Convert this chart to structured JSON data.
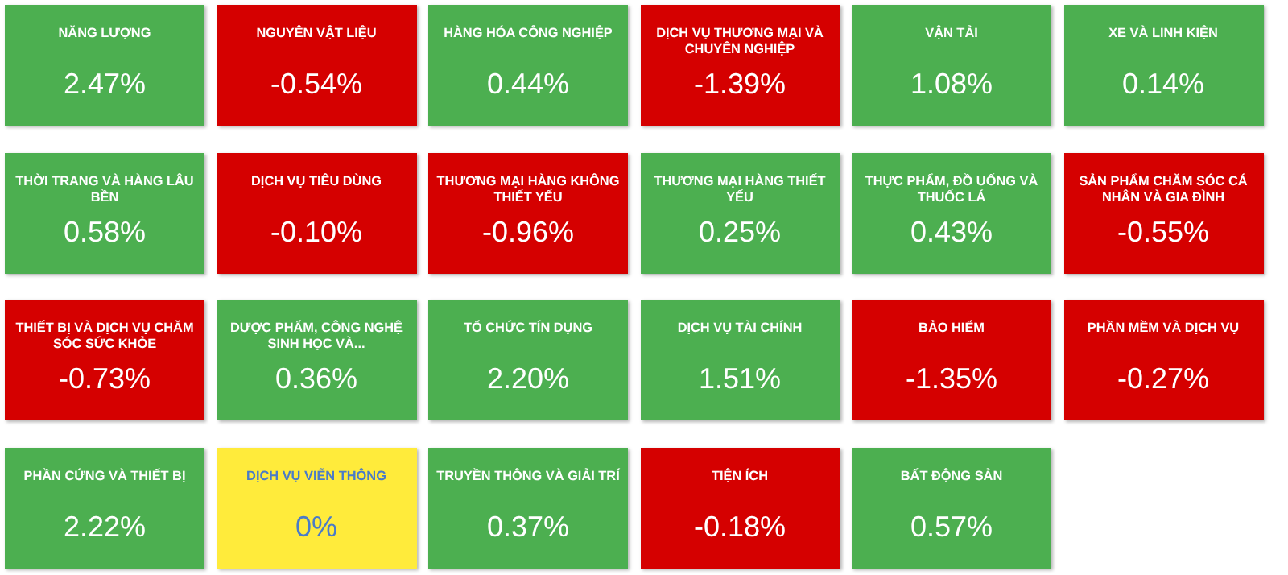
{
  "chart_data": {
    "type": "other",
    "categories": [
      "NĂNG LƯỢNG",
      "NGUYÊN VẬT LIỆU",
      "HÀNG HÓA CÔNG NGHIỆP",
      "DỊCH VỤ THƯƠNG MẠI VÀ CHUYÊN NGHIỆP",
      "VẬN TẢI",
      "XE VÀ LINH KIỆN",
      "THỜI TRANG VÀ HÀNG LÂU BỀN",
      "DỊCH VỤ TIÊU DÙNG",
      "THƯƠNG MẠI HÀNG KHÔNG THIẾT YẾU",
      "THƯƠNG MẠI HÀNG THIẾT YẾU",
      "THỰC PHẨM, ĐỒ UỐNG VÀ THUỐC LÁ",
      "SẢN PHẨM CHĂM SÓC CÁ NHÂN VÀ GIA ĐÌNH",
      "THIẾT BỊ VÀ DỊCH VỤ CHĂM SÓC SỨC KHỎE",
      "DƯỢC PHẨM, CÔNG NGHỆ SINH HỌC VÀ...",
      "TỔ CHỨC TÍN DỤNG",
      "DỊCH VỤ TÀI CHÍNH",
      "BẢO HIỂM",
      "PHẦN MỀM VÀ DỊCH VỤ",
      "PHẦN CỨNG VÀ THIẾT BỊ",
      "DỊCH VỤ VIỄN THÔNG",
      "TRUYỀN THÔNG VÀ GIẢI TRÍ",
      "TIỆN ÍCH",
      "BẤT ĐỘNG SẢN"
    ],
    "values": [
      2.47,
      -0.54,
      0.44,
      -1.39,
      1.08,
      0.14,
      0.58,
      -0.1,
      -0.96,
      0.25,
      0.43,
      -0.55,
      -0.73,
      0.36,
      2.2,
      1.51,
      -1.35,
      -0.27,
      2.22,
      0,
      0.37,
      -0.18,
      0.57
    ],
    "value_labels": [
      "2.47%",
      "-0.54%",
      "0.44%",
      "-1.39%",
      "1.08%",
      "0.14%",
      "0.58%",
      "-0.10%",
      "-0.96%",
      "0.25%",
      "0.43%",
      "-0.55%",
      "-0.73%",
      "0.36%",
      "2.20%",
      "1.51%",
      "-1.35%",
      "-0.27%",
      "2.22%",
      "0%",
      "0.37%",
      "-0.18%",
      "0.57%"
    ],
    "colors": [
      "#4caf50",
      "#d50000",
      "#4caf50",
      "#d50000",
      "#4caf50",
      "#4caf50",
      "#4caf50",
      "#d50000",
      "#d50000",
      "#4caf50",
      "#4caf50",
      "#d50000",
      "#d50000",
      "#4caf50",
      "#4caf50",
      "#4caf50",
      "#d50000",
      "#d50000",
      "#4caf50",
      "#ffeb3b",
      "#4caf50",
      "#d50000",
      "#4caf50"
    ]
  }
}
